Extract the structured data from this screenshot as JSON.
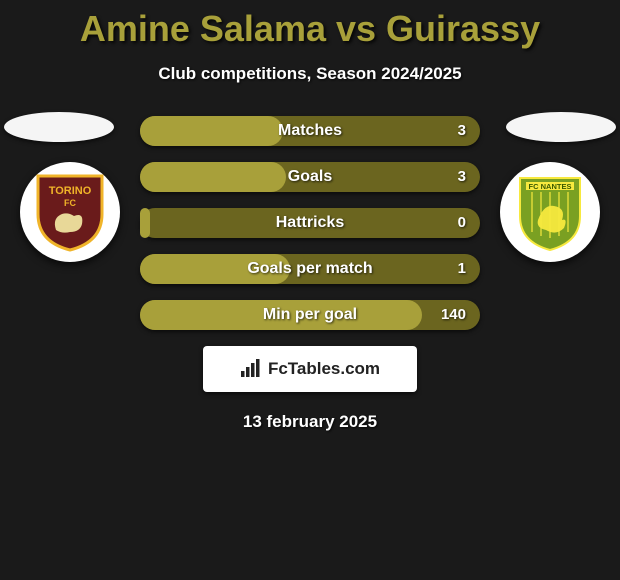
{
  "title": {
    "player1": "Amine Salama",
    "vs": " vs ",
    "player2": "Guirassy",
    "color": "#a8a03a"
  },
  "subtitle": "Club competitions, Season 2024/2025",
  "stats": {
    "bar_bg": "#6b651f",
    "fill_color": "#a8a03a",
    "rows": [
      {
        "label": "Matches",
        "value": "3",
        "fill_pct": 42
      },
      {
        "label": "Goals",
        "value": "3",
        "fill_pct": 43
      },
      {
        "label": "Hattricks",
        "value": "0",
        "fill_pct": 3
      },
      {
        "label": "Goals per match",
        "value": "1",
        "fill_pct": 44
      },
      {
        "label": "Min per goal",
        "value": "140",
        "fill_pct": 83
      }
    ]
  },
  "badges": {
    "left": {
      "name": "torino-badge",
      "bg": "#6a1b1b",
      "text": "TORINO",
      "text2": "FC",
      "accent": "#f0b429"
    },
    "right": {
      "name": "nantes-badge",
      "bg": "#7aa022",
      "text": "FC NANTES",
      "accent": "#f7e93e"
    }
  },
  "brand": "FcTables.com",
  "date": "13 february 2025"
}
